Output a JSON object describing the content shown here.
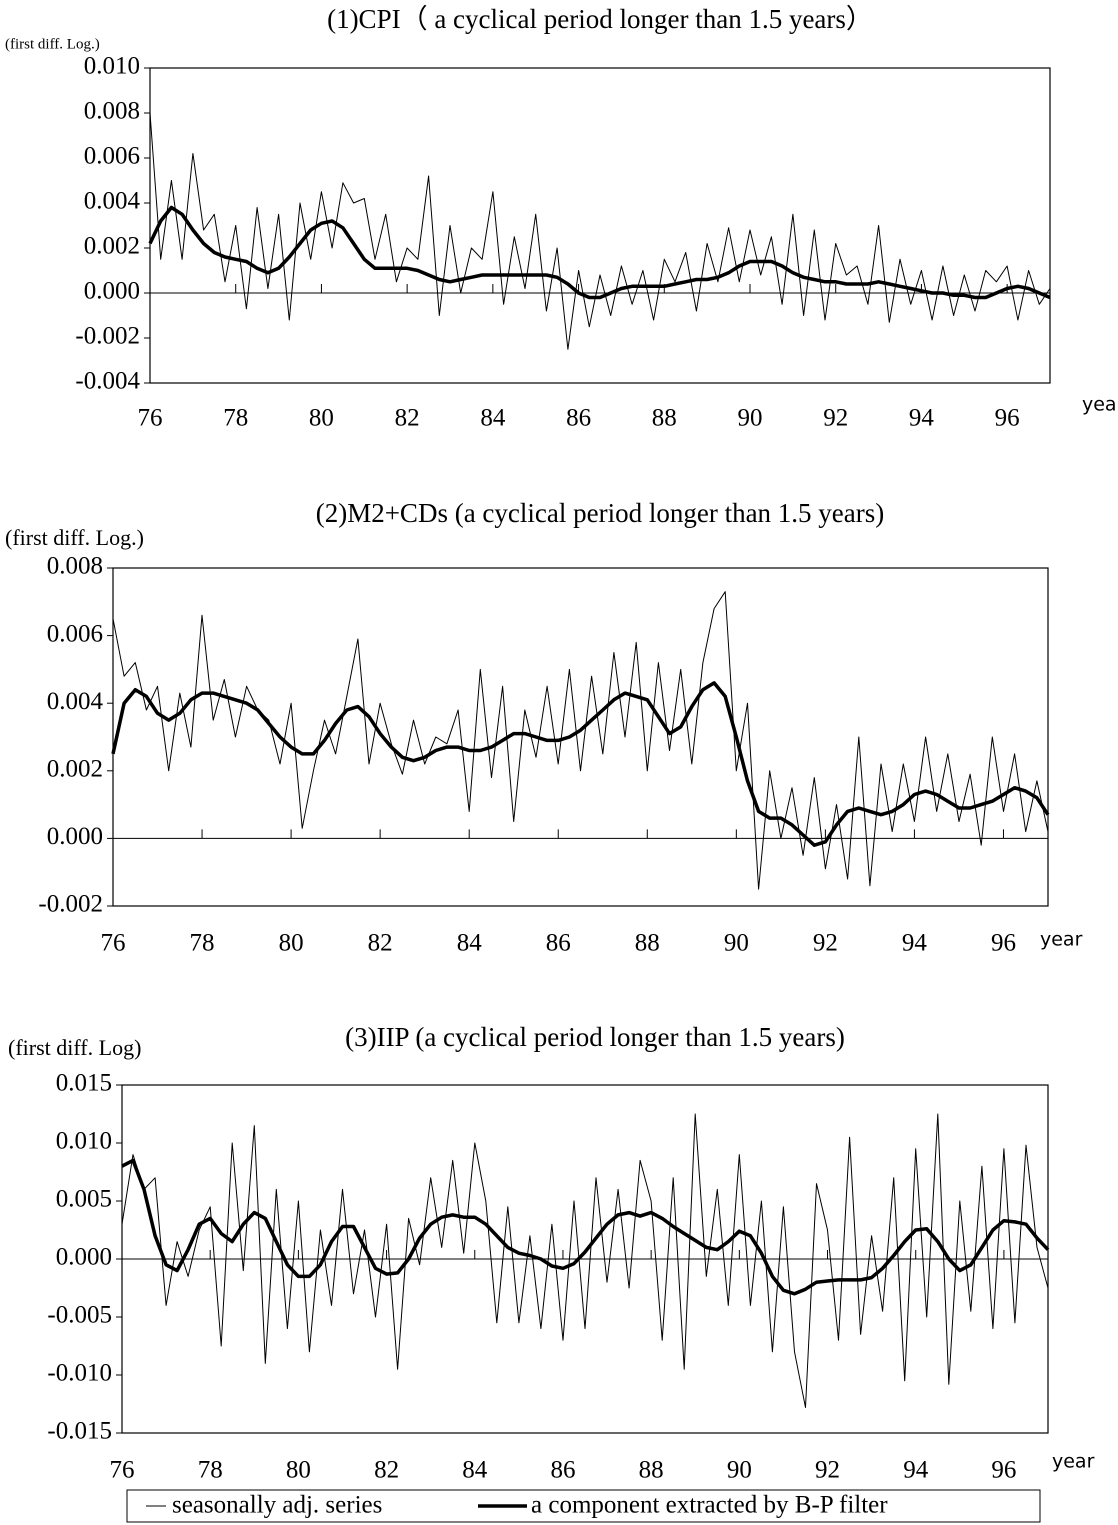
{
  "chart_data": [
    {
      "type": "line",
      "title": "(1)CPI（ a cyclical period longer than 1.5 years）",
      "y_label": "(first diff. Log.)",
      "x_label": "year",
      "x": [
        76,
        76.25,
        76.5,
        76.75,
        77,
        77.25,
        77.5,
        77.75,
        78,
        78.25,
        78.5,
        78.75,
        79,
        79.25,
        79.5,
        79.75,
        80,
        80.25,
        80.5,
        80.75,
        81,
        81.25,
        81.5,
        81.75,
        82,
        82.25,
        82.5,
        82.75,
        83,
        83.25,
        83.5,
        83.75,
        84,
        84.25,
        84.5,
        84.75,
        85,
        85.25,
        85.5,
        85.75,
        86,
        86.25,
        86.5,
        86.75,
        87,
        87.25,
        87.5,
        87.75,
        88,
        88.25,
        88.5,
        88.75,
        89,
        89.25,
        89.5,
        89.75,
        90,
        90.25,
        90.5,
        90.75,
        91,
        91.25,
        91.5,
        91.75,
        92,
        92.25,
        92.5,
        92.75,
        93,
        93.25,
        93.5,
        93.75,
        94,
        94.25,
        94.5,
        94.75,
        95,
        95.25,
        95.5,
        95.75,
        96,
        96.25,
        96.5,
        96.75,
        97
      ],
      "series": [
        {
          "color": "#000000",
          "values": [
            0.008,
            0.0015,
            0.005,
            0.0015,
            0.0062,
            0.0028,
            0.0035,
            0.0005,
            0.003,
            -0.0007,
            0.0038,
            0.0002,
            0.0035,
            -0.0012,
            0.004,
            0.0015,
            0.0045,
            0.002,
            0.0049,
            0.004,
            0.0042,
            0.0015,
            0.0035,
            0.0005,
            0.002,
            0.0015,
            0.0052,
            -0.001,
            0.003,
            0.0,
            0.002,
            0.0015,
            0.0045,
            -0.0005,
            0.0025,
            0.0002,
            0.0035,
            -0.0008,
            0.002,
            -0.0025,
            0.001,
            -0.0015,
            0.0008,
            -0.001,
            0.0012,
            -0.0005,
            0.001,
            -0.0012,
            0.0015,
            0.0005,
            0.0018,
            -0.0008,
            0.0022,
            0.0005,
            0.0029,
            0.0005,
            0.0028,
            0.0008,
            0.0025,
            -0.0005,
            0.0035,
            -0.001,
            0.0028,
            -0.0012,
            0.0022,
            0.0008,
            0.0012,
            -0.0005,
            0.003,
            -0.0013,
            0.0015,
            -0.0005,
            0.001,
            -0.0012,
            0.0012,
            -0.001,
            0.0008,
            -0.0008,
            0.001,
            0.0005,
            0.0012,
            -0.0012,
            0.001,
            -0.0005,
            0.0002
          ]
        },
        {
          "color": "#000000",
          "values": [
            0.0022,
            0.0032,
            0.0038,
            0.0035,
            0.0028,
            0.0022,
            0.0018,
            0.0016,
            0.0015,
            0.0014,
            0.0011,
            0.0009,
            0.0011,
            0.0016,
            0.0022,
            0.0028,
            0.0031,
            0.0032,
            0.0029,
            0.0022,
            0.0015,
            0.0011,
            0.0011,
            0.0011,
            0.0011,
            0.001,
            0.0008,
            0.0006,
            0.0005,
            0.0006,
            0.0007,
            0.0008,
            0.0008,
            0.0008,
            0.0008,
            0.0008,
            0.0008,
            0.0008,
            0.0007,
            0.0004,
            0.0,
            -0.0002,
            -0.0002,
            0.0,
            0.0002,
            0.0003,
            0.0003,
            0.0003,
            0.0003,
            0.0004,
            0.0005,
            0.0006,
            0.0006,
            0.0007,
            0.0009,
            0.0012,
            0.0014,
            0.0014,
            0.0014,
            0.0012,
            0.0009,
            0.0007,
            0.0006,
            0.0005,
            0.0005,
            0.0004,
            0.0004,
            0.0004,
            0.0005,
            0.0004,
            0.0003,
            0.0002,
            0.0001,
            0.0,
            0.0,
            -0.0001,
            -0.0001,
            -0.0002,
            -0.0002,
            0.0,
            0.0002,
            0.0003,
            0.0002,
            0.0,
            -0.0002
          ]
        }
      ],
      "xlim": [
        76,
        97
      ],
      "xticks": [
        76,
        78,
        80,
        82,
        84,
        86,
        88,
        90,
        92,
        94,
        96
      ],
      "ylim": [
        -0.004,
        0.01
      ],
      "yticks": [
        -0.004,
        -0.002,
        {
          "value": 0,
          "label": "0.000"
        },
        0.002,
        0.004,
        0.006,
        0.008,
        {
          "value": 0.01,
          "label": "0.010"
        }
      ]
    },
    {
      "type": "line",
      "title": "(2)M2+CDs (a cyclical period longer than 1.5 years)",
      "y_label": "(first diff. Log.)",
      "x_label": "year",
      "x": [
        76,
        76.25,
        76.5,
        76.75,
        77,
        77.25,
        77.5,
        77.75,
        78,
        78.25,
        78.5,
        78.75,
        79,
        79.25,
        79.5,
        79.75,
        80,
        80.25,
        80.5,
        80.75,
        81,
        81.25,
        81.5,
        81.75,
        82,
        82.25,
        82.5,
        82.75,
        83,
        83.25,
        83.5,
        83.75,
        84,
        84.25,
        84.5,
        84.75,
        85,
        85.25,
        85.5,
        85.75,
        86,
        86.25,
        86.5,
        86.75,
        87,
        87.25,
        87.5,
        87.75,
        88,
        88.25,
        88.5,
        88.75,
        89,
        89.25,
        89.5,
        89.75,
        90,
        90.25,
        90.5,
        90.75,
        91,
        91.25,
        91.5,
        91.75,
        92,
        92.25,
        92.5,
        92.75,
        93,
        93.25,
        93.5,
        93.75,
        94,
        94.25,
        94.5,
        94.75,
        95,
        95.25,
        95.5,
        95.75,
        96,
        96.25,
        96.5,
        96.75,
        97
      ],
      "series": [
        {
          "color": "#000000",
          "values": [
            0.0065,
            0.0048,
            0.0052,
            0.0038,
            0.0045,
            0.002,
            0.0043,
            0.0027,
            0.0066,
            0.0035,
            0.0047,
            0.003,
            0.0045,
            0.0038,
            0.0035,
            0.0022,
            0.004,
            0.0003,
            0.002,
            0.0035,
            0.0025,
            0.0042,
            0.0059,
            0.0022,
            0.004,
            0.0028,
            0.0019,
            0.0035,
            0.0022,
            0.003,
            0.0028,
            0.0038,
            0.0008,
            0.005,
            0.0018,
            0.0045,
            0.0005,
            0.0038,
            0.0024,
            0.0045,
            0.0022,
            0.005,
            0.002,
            0.0048,
            0.0025,
            0.0055,
            0.003,
            0.0058,
            0.002,
            0.0052,
            0.0026,
            0.005,
            0.0022,
            0.0052,
            0.0068,
            0.0073,
            0.002,
            0.004,
            -0.0015,
            0.002,
            0.0,
            0.0015,
            -0.0005,
            0.0018,
            -0.0009,
            0.001,
            -0.0012,
            0.003,
            -0.0014,
            0.0022,
            0.0002,
            0.0022,
            0.0005,
            0.003,
            0.0008,
            0.0025,
            0.0005,
            0.0019,
            -0.0002,
            0.003,
            0.0008,
            0.0025,
            0.0002,
            0.0017,
            0.0002
          ]
        },
        {
          "color": "#000000",
          "values": [
            0.0025,
            0.004,
            0.0044,
            0.0042,
            0.0037,
            0.0035,
            0.0037,
            0.0041,
            0.0043,
            0.0043,
            0.0042,
            0.0041,
            0.004,
            0.0038,
            0.0034,
            0.003,
            0.0027,
            0.0025,
            0.0025,
            0.0029,
            0.0034,
            0.0038,
            0.0039,
            0.0036,
            0.0031,
            0.0027,
            0.0024,
            0.0023,
            0.0024,
            0.0026,
            0.0027,
            0.0027,
            0.0026,
            0.0026,
            0.0027,
            0.0029,
            0.0031,
            0.0031,
            0.003,
            0.0029,
            0.0029,
            0.003,
            0.0032,
            0.0035,
            0.0038,
            0.0041,
            0.0043,
            0.0042,
            0.0041,
            0.0036,
            0.0031,
            0.0033,
            0.0039,
            0.0044,
            0.0046,
            0.0042,
            0.003,
            0.0017,
            0.0008,
            0.0006,
            0.0006,
            0.0004,
            0.0001,
            -0.0002,
            -0.0001,
            0.0004,
            0.0008,
            0.0009,
            0.0008,
            0.0007,
            0.0008,
            0.001,
            0.0013,
            0.0014,
            0.0013,
            0.0011,
            0.0009,
            0.0009,
            0.001,
            0.0011,
            0.0013,
            0.0015,
            0.0014,
            0.0012,
            0.0007
          ]
        }
      ],
      "xlim": [
        76,
        97
      ],
      "xticks": [
        76,
        78,
        80,
        82,
        84,
        86,
        88,
        90,
        92,
        94,
        96
      ],
      "ylim": [
        -0.002,
        0.008
      ],
      "yticks": [
        -0.002,
        {
          "value": 0,
          "label": "0.000"
        },
        0.002,
        0.004,
        0.006,
        0.008
      ]
    },
    {
      "type": "line",
      "title": "(3)IIP  (a cyclical period longer than 1.5 years)",
      "y_label": "(first diff. Log)",
      "x_label": "year",
      "x": [
        76,
        76.25,
        76.5,
        76.75,
        77,
        77.25,
        77.5,
        77.75,
        78,
        78.25,
        78.5,
        78.75,
        79,
        79.25,
        79.5,
        79.75,
        80,
        80.25,
        80.5,
        80.75,
        81,
        81.25,
        81.5,
        81.75,
        82,
        82.25,
        82.5,
        82.75,
        83,
        83.25,
        83.5,
        83.75,
        84,
        84.25,
        84.5,
        84.75,
        85,
        85.25,
        85.5,
        85.75,
        86,
        86.25,
        86.5,
        86.75,
        87,
        87.25,
        87.5,
        87.75,
        88,
        88.25,
        88.5,
        88.75,
        89,
        89.25,
        89.5,
        89.75,
        90,
        90.25,
        90.5,
        90.75,
        91,
        91.25,
        91.5,
        91.75,
        92,
        92.25,
        92.5,
        92.75,
        93,
        93.25,
        93.5,
        93.75,
        94,
        94.25,
        94.5,
        94.75,
        95,
        95.25,
        95.5,
        95.75,
        96,
        96.25,
        96.5,
        96.75,
        97
      ],
      "series": [
        {
          "name": "seasonally adj. series",
          "color": "#000000",
          "values": [
            0.003,
            0.009,
            0.006,
            0.007,
            -0.004,
            0.0015,
            -0.0015,
            0.0025,
            0.0045,
            -0.0075,
            0.01,
            -0.001,
            0.0115,
            -0.009,
            0.006,
            -0.006,
            0.005,
            -0.008,
            0.0025,
            -0.004,
            0.006,
            -0.003,
            0.0025,
            -0.005,
            0.003,
            -0.0095,
            0.0035,
            -0.0005,
            0.007,
            0.001,
            0.0085,
            0.0005,
            0.01,
            0.005,
            -0.0055,
            0.0045,
            -0.0055,
            0.002,
            -0.006,
            0.003,
            -0.007,
            0.005,
            -0.006,
            0.007,
            -0.002,
            0.006,
            -0.0025,
            0.0085,
            0.005,
            -0.007,
            0.007,
            -0.0095,
            0.0125,
            -0.0015,
            0.006,
            -0.004,
            0.009,
            -0.004,
            0.005,
            -0.008,
            0.0045,
            -0.008,
            -0.0128,
            0.0065,
            0.0025,
            -0.007,
            0.0105,
            -0.0065,
            0.002,
            -0.0045,
            0.007,
            -0.0105,
            0.0095,
            -0.005,
            0.0125,
            -0.0108,
            0.005,
            -0.0045,
            0.008,
            -0.006,
            0.0095,
            -0.0055,
            0.0098,
            0.001,
            -0.0025
          ]
        },
        {
          "name": "a component extracted by B-P filter",
          "color": "#000000",
          "values": [
            0.008,
            0.0085,
            0.006,
            0.002,
            -0.0005,
            -0.001,
            0.0008,
            0.003,
            0.0035,
            0.0022,
            0.0015,
            0.003,
            0.004,
            0.0035,
            0.0015,
            -0.0005,
            -0.0015,
            -0.0015,
            -0.0005,
            0.0015,
            0.0028,
            0.0028,
            0.001,
            -0.0008,
            -0.0013,
            -0.0012,
            0.0,
            0.0018,
            0.003,
            0.0036,
            0.0038,
            0.0036,
            0.0036,
            0.003,
            0.002,
            0.001,
            0.0005,
            0.0003,
            0.0,
            -0.0006,
            -0.0008,
            -0.0004,
            0.0006,
            0.0018,
            0.003,
            0.0038,
            0.004,
            0.0037,
            0.004,
            0.0035,
            0.0028,
            0.0022,
            0.0016,
            0.001,
            0.0008,
            0.0015,
            0.0024,
            0.002,
            0.0005,
            -0.0015,
            -0.0027,
            -0.003,
            -0.0026,
            -0.002,
            -0.0019,
            -0.0018,
            -0.0018,
            -0.0018,
            -0.0016,
            -0.0008,
            0.0003,
            0.0015,
            0.0025,
            0.0026,
            0.0015,
            0.0,
            -0.001,
            -0.0005,
            0.001,
            0.0025,
            0.0033,
            0.0032,
            0.003,
            0.0018,
            0.0008
          ]
        }
      ],
      "xlim": [
        76,
        97
      ],
      "xticks": [
        76,
        78,
        80,
        82,
        84,
        86,
        88,
        90,
        92,
        94,
        96
      ],
      "ylim": [
        -0.015,
        0.015
      ],
      "yticks": [
        -0.015,
        {
          "value": -0.01,
          "label": "-0.010"
        },
        -0.005,
        {
          "value": 0,
          "label": "0.000"
        },
        0.005,
        {
          "value": 0.01,
          "label": "0.010"
        },
        0.015
      ],
      "legend": "bottom"
    }
  ]
}
